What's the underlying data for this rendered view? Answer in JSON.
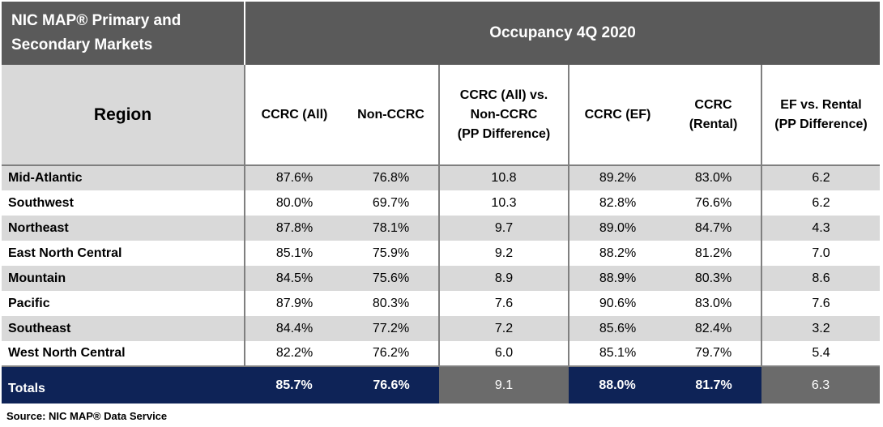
{
  "title": {
    "left_line1": "NIC MAP® Primary and",
    "left_line2": "Secondary Markets",
    "right": "Occupancy 4Q 2020"
  },
  "columns": {
    "region": "Region",
    "ccrc_all": "CCRC (All)",
    "non_ccrc": "Non-CCRC",
    "diff_line1": "CCRC (All) vs.",
    "diff_line2": "Non-CCRC",
    "diff_line3": "(PP Difference)",
    "ccrc_ef": "CCRC (EF)",
    "rental_line1": "CCRC",
    "rental_line2": "(Rental)",
    "ef_rental_line1": "EF  vs. Rental",
    "ef_rental_line2": "(PP Difference)"
  },
  "chart_data": {
    "type": "table",
    "title": "Occupancy 4Q 2020",
    "columns": [
      "Region",
      "CCRC (All)",
      "Non-CCRC",
      "CCRC (All) vs. Non-CCRC (PP Difference)",
      "CCRC (EF)",
      "CCRC (Rental)",
      "EF vs. Rental (PP Difference)"
    ],
    "rows": [
      {
        "region": "Mid-Atlantic",
        "ccrc_all": "87.6%",
        "non_ccrc": "76.8%",
        "diff": "10.8",
        "ccrc_ef": "89.2%",
        "ccrc_rental": "83.0%",
        "ef_rental_diff": "6.2"
      },
      {
        "region": "Southwest",
        "ccrc_all": "80.0%",
        "non_ccrc": "69.7%",
        "diff": "10.3",
        "ccrc_ef": "82.8%",
        "ccrc_rental": "76.6%",
        "ef_rental_diff": "6.2"
      },
      {
        "region": "Northeast",
        "ccrc_all": "87.8%",
        "non_ccrc": "78.1%",
        "diff": "9.7",
        "ccrc_ef": "89.0%",
        "ccrc_rental": "84.7%",
        "ef_rental_diff": "4.3"
      },
      {
        "region": "East North Central",
        "ccrc_all": "85.1%",
        "non_ccrc": "75.9%",
        "diff": "9.2",
        "ccrc_ef": "88.2%",
        "ccrc_rental": "81.2%",
        "ef_rental_diff": "7.0"
      },
      {
        "region": "Mountain",
        "ccrc_all": "84.5%",
        "non_ccrc": "75.6%",
        "diff": "8.9",
        "ccrc_ef": "88.9%",
        "ccrc_rental": "80.3%",
        "ef_rental_diff": "8.6"
      },
      {
        "region": "Pacific",
        "ccrc_all": "87.9%",
        "non_ccrc": "80.3%",
        "diff": "7.6",
        "ccrc_ef": "90.6%",
        "ccrc_rental": "83.0%",
        "ef_rental_diff": "7.6"
      },
      {
        "region": "Southeast",
        "ccrc_all": "84.4%",
        "non_ccrc": "77.2%",
        "diff": "7.2",
        "ccrc_ef": "85.6%",
        "ccrc_rental": "82.4%",
        "ef_rental_diff": "3.2"
      },
      {
        "region": "West North Central",
        "ccrc_all": "82.2%",
        "non_ccrc": "76.2%",
        "diff": "6.0",
        "ccrc_ef": "85.1%",
        "ccrc_rental": "79.7%",
        "ef_rental_diff": "5.4"
      }
    ],
    "totals": {
      "region": "Totals",
      "ccrc_all": "85.7%",
      "non_ccrc": "76.6%",
      "diff": "9.1",
      "ccrc_ef": "88.0%",
      "ccrc_rental": "81.7%",
      "ef_rental_diff": "6.3"
    }
  },
  "source": "Source: NIC MAP® Data Service",
  "colors": {
    "title_bg": "#5a5a5a",
    "navy": "#0e2357",
    "totals_gray": "#6b6b6b",
    "shade": "#d9d9d9"
  }
}
